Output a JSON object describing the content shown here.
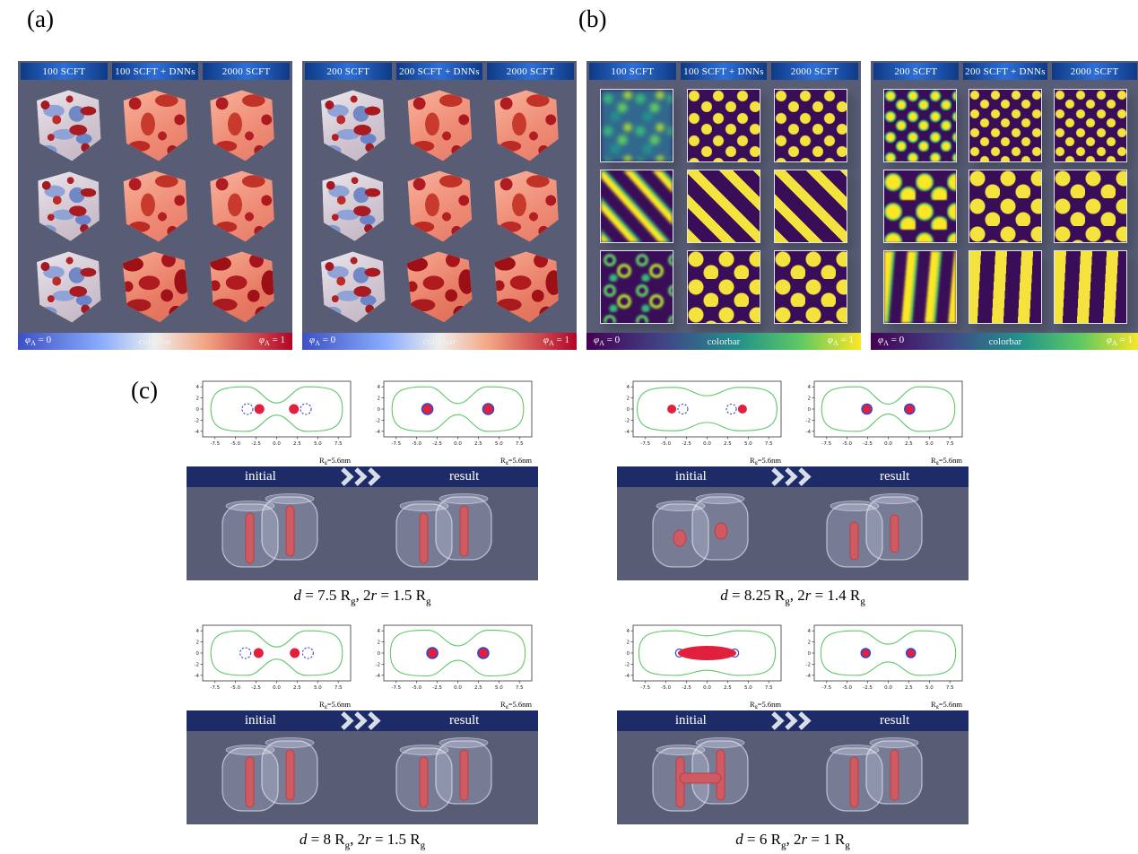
{
  "figure_labels": {
    "a": "(a)",
    "b": "(b)",
    "c": "(c)"
  },
  "colors": {
    "panel_bg": "#585c74",
    "header_blue": "#2e6fd6",
    "banner_navy": "#1d2c68",
    "field_purple": "#3a0d59",
    "field_yellow": "#f4e33c",
    "contour_green": "#5fc868",
    "contour_blue": "#3746c8",
    "contour_red": "#e0203d",
    "coolwarm": [
      "#3d50c3",
      "#eeeeec",
      "#b40426"
    ],
    "viridis": [
      "#440154",
      "#21918c",
      "#fde725"
    ]
  },
  "colorbar_labels": {
    "sym": "φ",
    "sub": "A",
    "left_val": " = 0",
    "mid": "colorbar",
    "right_val": " = 1"
  },
  "grid_panels": [
    {
      "id": "a-left",
      "kind": "iso3d",
      "scheme": "coolwarm",
      "headers": [
        "100 SCFT",
        "100 SCFT + DNNs",
        "2000 SCFT"
      ],
      "cells": [
        "cube-mixed",
        "cube-salmon",
        "cube-salmon",
        "cube-mixed",
        "cube-salmon",
        "cube-salmon",
        "cube-mixed",
        "cube-red",
        "cube-red"
      ]
    },
    {
      "id": "a-right",
      "kind": "iso3d",
      "scheme": "coolwarm",
      "headers": [
        "200 SCFT",
        "200 SCFT + DNNs",
        "2000 SCFT"
      ],
      "cells": [
        "cube-mixed",
        "cube-salmon",
        "cube-salmon",
        "cube-mixed",
        "cube-salmon",
        "cube-salmon",
        "cube-mixed",
        "cube-red",
        "cube-red"
      ]
    },
    {
      "id": "b-left",
      "kind": "field2d",
      "scheme": "viridis",
      "headers": [
        "100 SCFT",
        "100 SCFT + DNNs",
        "2000 SCFT"
      ],
      "cells": [
        "b-blur-spots",
        "b-dots",
        "b-dots",
        "b-blur-stripes",
        "b-stripes",
        "b-stripes",
        "b-blur-rings",
        "b-bigdots",
        "b-bigdots"
      ]
    },
    {
      "id": "b-right",
      "kind": "field2d",
      "scheme": "viridis",
      "headers": [
        "200 SCFT",
        "200 SCFT + DNNs",
        "2000 SCFT"
      ],
      "cells": [
        "b-rimdots",
        "b-dots-sm",
        "b-dots-sm",
        "b-blobs",
        "b-bigdots",
        "b-bigdots",
        "b-blur-vworms",
        "b-vstripes",
        "b-vstripes"
      ]
    }
  ],
  "simulations": {
    "plot_axis": {
      "xticks": [
        "-7.5",
        "-5.0",
        "-2.5",
        "0.0",
        "2.5",
        "5.0",
        "7.5"
      ],
      "yticks": [
        "4",
        "2",
        "0",
        "-2",
        "-4"
      ],
      "scale": {
        "main": "R",
        "sub": "g",
        "rest": "=5.6nm"
      }
    },
    "banner": {
      "initial": "initial",
      "result": "result"
    },
    "groups": [
      {
        "caption": [
          [
            "i",
            "d"
          ],
          [
            "t",
            " = 7.5 R"
          ],
          [
            "s",
            "g"
          ],
          [
            "t",
            ", 2"
          ],
          [
            "i",
            "r"
          ],
          [
            "t",
            " = 1.5 R"
          ],
          [
            "s",
            "g"
          ]
        ],
        "plots": {
          "initial": {
            "W": 8.0,
            "H": 4.0,
            "D": 1.1,
            "red": [
              {
                "x": -2.1,
                "r": 5.5
              },
              {
                "x": 2.1,
                "r": 5.5
              }
            ],
            "dashed": [
              {
                "x": -3.55,
                "r": 6
              },
              {
                "x": 3.55,
                "r": 6
              }
            ],
            "ring": false
          },
          "result": {
            "W": 8.0,
            "H": 4.0,
            "D": 1.0,
            "red": [
              {
                "x": -3.7,
                "r": 6
              },
              {
                "x": 3.7,
                "r": 6
              }
            ],
            "dashed": [],
            "ring": true
          }
        },
        "render": {
          "initial": "rods",
          "result": "rods"
        }
      },
      {
        "caption": [
          [
            "i",
            "d"
          ],
          [
            "t",
            " = 8.25 R"
          ],
          [
            "s",
            "g"
          ],
          [
            "t",
            ", 2"
          ],
          [
            "i",
            "r"
          ],
          [
            "t",
            " = 1.4 R"
          ],
          [
            "s",
            "g"
          ]
        ],
        "plots": {
          "initial": {
            "W": 8.5,
            "H": 3.9,
            "D": 2.4,
            "red": [
              {
                "x": -4.3,
                "r": 5
              },
              {
                "x": 4.3,
                "r": 5
              }
            ],
            "dashed": [
              {
                "x": -2.95,
                "r": 5.5
              },
              {
                "x": 2.95,
                "r": 5.5
              }
            ],
            "ring": false
          },
          "result": {
            "W": 8.1,
            "H": 4.0,
            "D": 0.9,
            "red": [
              {
                "x": -2.6,
                "r": 5.5
              },
              {
                "x": 2.6,
                "r": 5.5
              }
            ],
            "dashed": [],
            "ring": true
          }
        },
        "render": {
          "initial": "spots",
          "result": "short-rods"
        }
      },
      {
        "caption": [
          [
            "i",
            "d"
          ],
          [
            "t",
            " = 8 R"
          ],
          [
            "s",
            "g"
          ],
          [
            "t",
            ", 2"
          ],
          [
            "i",
            "r"
          ],
          [
            "t",
            " = 1.5 R"
          ],
          [
            "s",
            "g"
          ]
        ],
        "plots": {
          "initial": {
            "W": 8.0,
            "H": 4.0,
            "D": 1.1,
            "red": [
              {
                "x": -2.2,
                "r": 5.5
              },
              {
                "x": 2.2,
                "r": 5.5
              }
            ],
            "dashed": [
              {
                "x": -3.8,
                "r": 6
              },
              {
                "x": 3.8,
                "r": 6
              }
            ],
            "ring": false
          },
          "result": {
            "W": 8.2,
            "H": 4.1,
            "D": 1.3,
            "red": [
              {
                "x": -3.1,
                "r": 6
              },
              {
                "x": 3.1,
                "r": 6
              }
            ],
            "dashed": [],
            "ring": true
          }
        },
        "render": {
          "initial": "rods",
          "result": "rods"
        }
      },
      {
        "caption": [
          [
            "i",
            "d"
          ],
          [
            "t",
            " = 6 R"
          ],
          [
            "s",
            "g"
          ],
          [
            "t",
            ", 2"
          ],
          [
            "i",
            "r"
          ],
          [
            "t",
            " = 1 R"
          ],
          [
            "s",
            "g"
          ]
        ],
        "plots": {
          "initial": {
            "W": 8.3,
            "H": 4.0,
            "D": 3.1,
            "red": [],
            "red_ellipse": {
              "x": 0,
              "rxu": 3.55,
              "ry": 8
            },
            "solid_blue": [
              {
                "x": -3.35,
                "r": 4.5
              },
              {
                "x": 3.35,
                "r": 4.5
              }
            ],
            "dashed": [],
            "ring": false
          },
          "result": {
            "W": 8.2,
            "H": 4.0,
            "D": 1.6,
            "red": [
              {
                "x": -2.75,
                "r": 5
              },
              {
                "x": 2.75,
                "r": 5
              }
            ],
            "dashed": [],
            "ring": true
          }
        },
        "render": {
          "initial": "bridged",
          "result": "rods"
        }
      }
    ]
  }
}
